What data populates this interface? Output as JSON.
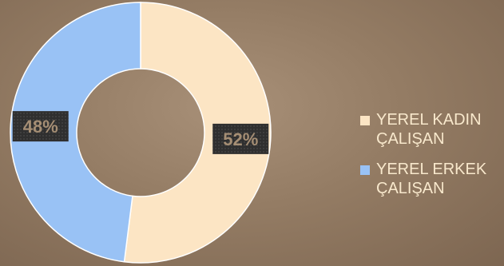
{
  "chart_data": {
    "type": "pie",
    "donut": true,
    "title": "",
    "categories": [
      "YEREL KADIN ÇALIŞAN",
      "YEREL ERKEK ÇALIŞAN"
    ],
    "values": [
      52,
      48
    ],
    "data_labels": [
      "52%",
      "48%"
    ],
    "colors": [
      "#fce5c4",
      "#99c2f5"
    ],
    "legend_position": "right"
  }
}
